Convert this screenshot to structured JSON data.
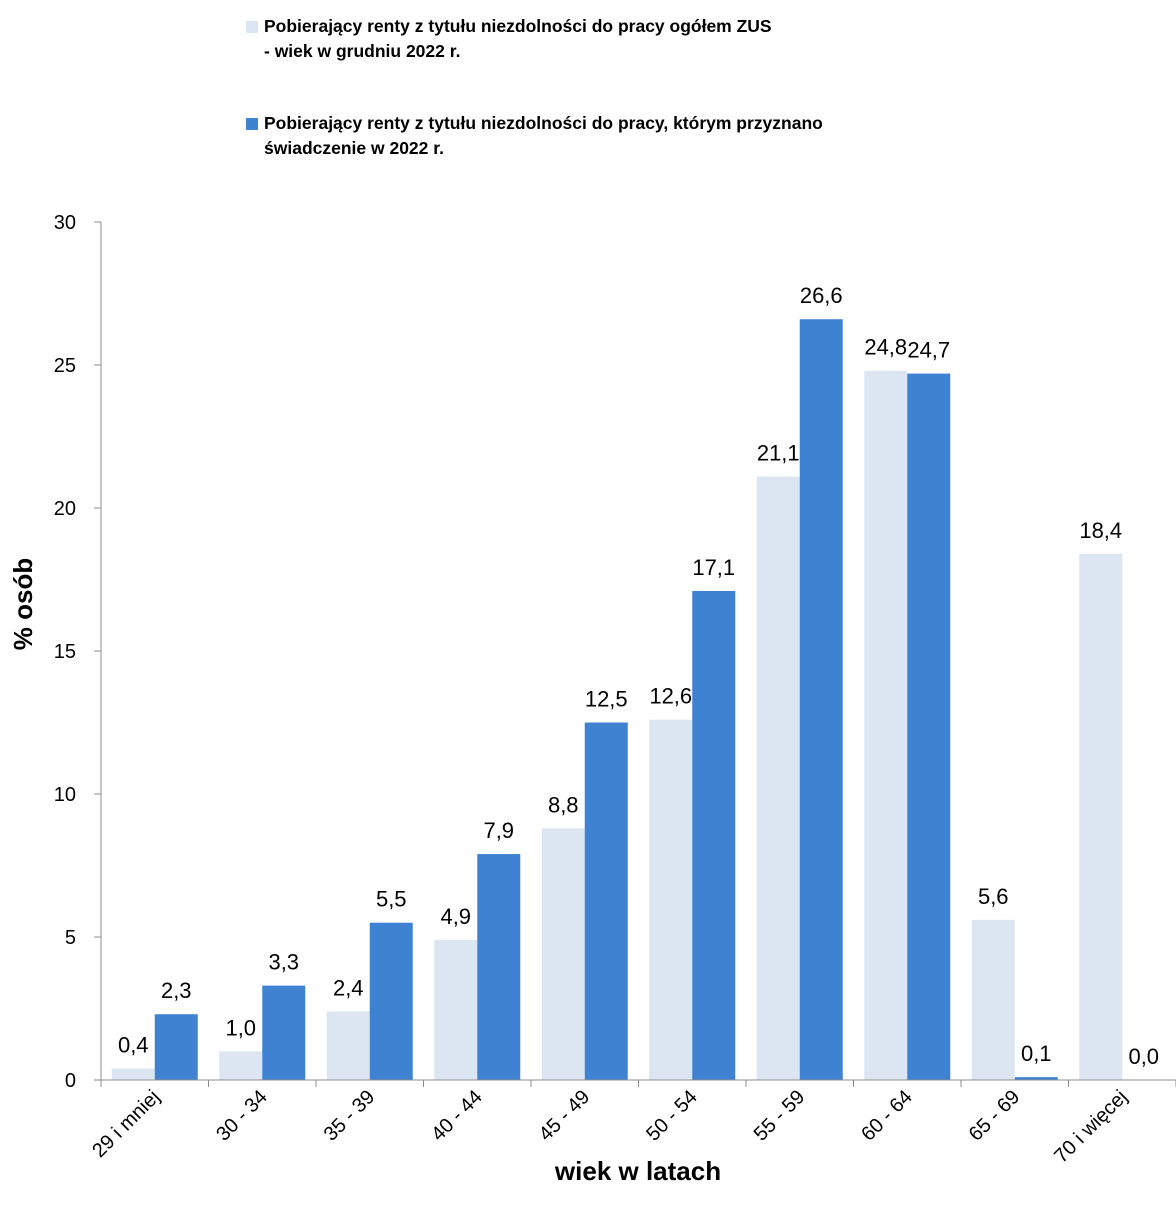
{
  "chart_data": {
    "type": "bar",
    "title": "",
    "xlabel": "wiek w latach",
    "ylabel": "% osób",
    "ylim": [
      0,
      30
    ],
    "yticks": [
      0,
      5,
      10,
      15,
      20,
      25,
      30
    ],
    "grid": false,
    "legend_position": "top",
    "categories": [
      "29 i mniej",
      "30 - 34",
      "35 - 39",
      "40 - 44",
      "45 - 49",
      "50 - 54",
      "55 - 59",
      "60 - 64",
      "65 - 69",
      "70 i więcej"
    ],
    "series": [
      {
        "name": "Pobierający renty z tytułu niezdolności do pracy ogółem ZUS\n - wiek w grudniu 2022 r.",
        "color": "#dce6f2",
        "values": [
          0.4,
          1.0,
          2.4,
          4.9,
          8.8,
          12.6,
          21.1,
          24.8,
          5.6,
          18.4
        ],
        "labels": [
          "0,4",
          "1,0",
          "2,4",
          "4,9",
          "8,8",
          "12,6",
          "21,1",
          "24,8",
          "5,6",
          "18,4"
        ]
      },
      {
        "name": "Pobierający renty z tytułu niezdolności do pracy, którym przyznano\nświadczenie w 2022 r.",
        "color": "#3f82d2",
        "values": [
          2.3,
          3.3,
          5.5,
          7.9,
          12.5,
          17.1,
          26.6,
          24.7,
          0.1,
          0.0
        ],
        "labels": [
          "2,3",
          "3,3",
          "5,5",
          "7,9",
          "12,5",
          "17,1",
          "26,6",
          "24,7",
          "0,1",
          "0,0"
        ]
      }
    ]
  }
}
